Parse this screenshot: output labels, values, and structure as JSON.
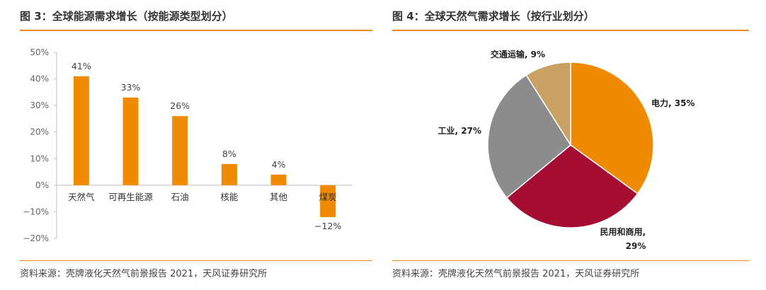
{
  "figure3": {
    "title": "图 3：全球能源需求增长（按能源类型划分）",
    "source": "资料来源：壳牌液化天然气前景报告 2021，天风证券研究所"
  },
  "figure4": {
    "title": "图 4：全球天然气需求增长（按行业划分）",
    "source": "资料来源：壳牌液化天然气前景报告 2021，天风证券研究所"
  },
  "chart_data": [
    {
      "type": "bar",
      "title": "",
      "xlabel": "",
      "ylabel": "",
      "categories": [
        "天然气",
        "可再生能源",
        "石油",
        "核能",
        "其他",
        "煤炭"
      ],
      "values": [
        41,
        33,
        26,
        8,
        4,
        -12
      ],
      "value_labels": [
        "41%",
        "33%",
        "26%",
        "8%",
        "4%",
        "−12%"
      ],
      "ylim": [
        -20,
        50
      ],
      "yticks": [
        "50%",
        "40%",
        "30%",
        "20%",
        "10%",
        "0%",
        "−10%",
        "−20%"
      ],
      "ytick_values": [
        50,
        40,
        30,
        20,
        10,
        0,
        -10,
        -20
      ],
      "color": "#F08A00",
      "grid": false,
      "legend": "none"
    },
    {
      "type": "pie",
      "title": "",
      "slices": [
        {
          "label": "电力, 35%",
          "name": "电力",
          "value": 35,
          "color": "#F08A00"
        },
        {
          "label": "民用和商用,",
          "label2": "29%",
          "name": "民用和商用",
          "value": 29,
          "color": "#A50D33"
        },
        {
          "label": "工业, 27%",
          "name": "工业",
          "value": 27,
          "color": "#8C8C8C"
        },
        {
          "label": "交通运输, 9%",
          "name": "交通运输",
          "value": 9,
          "color": "#C9A165"
        }
      ],
      "legend": "none"
    }
  ]
}
